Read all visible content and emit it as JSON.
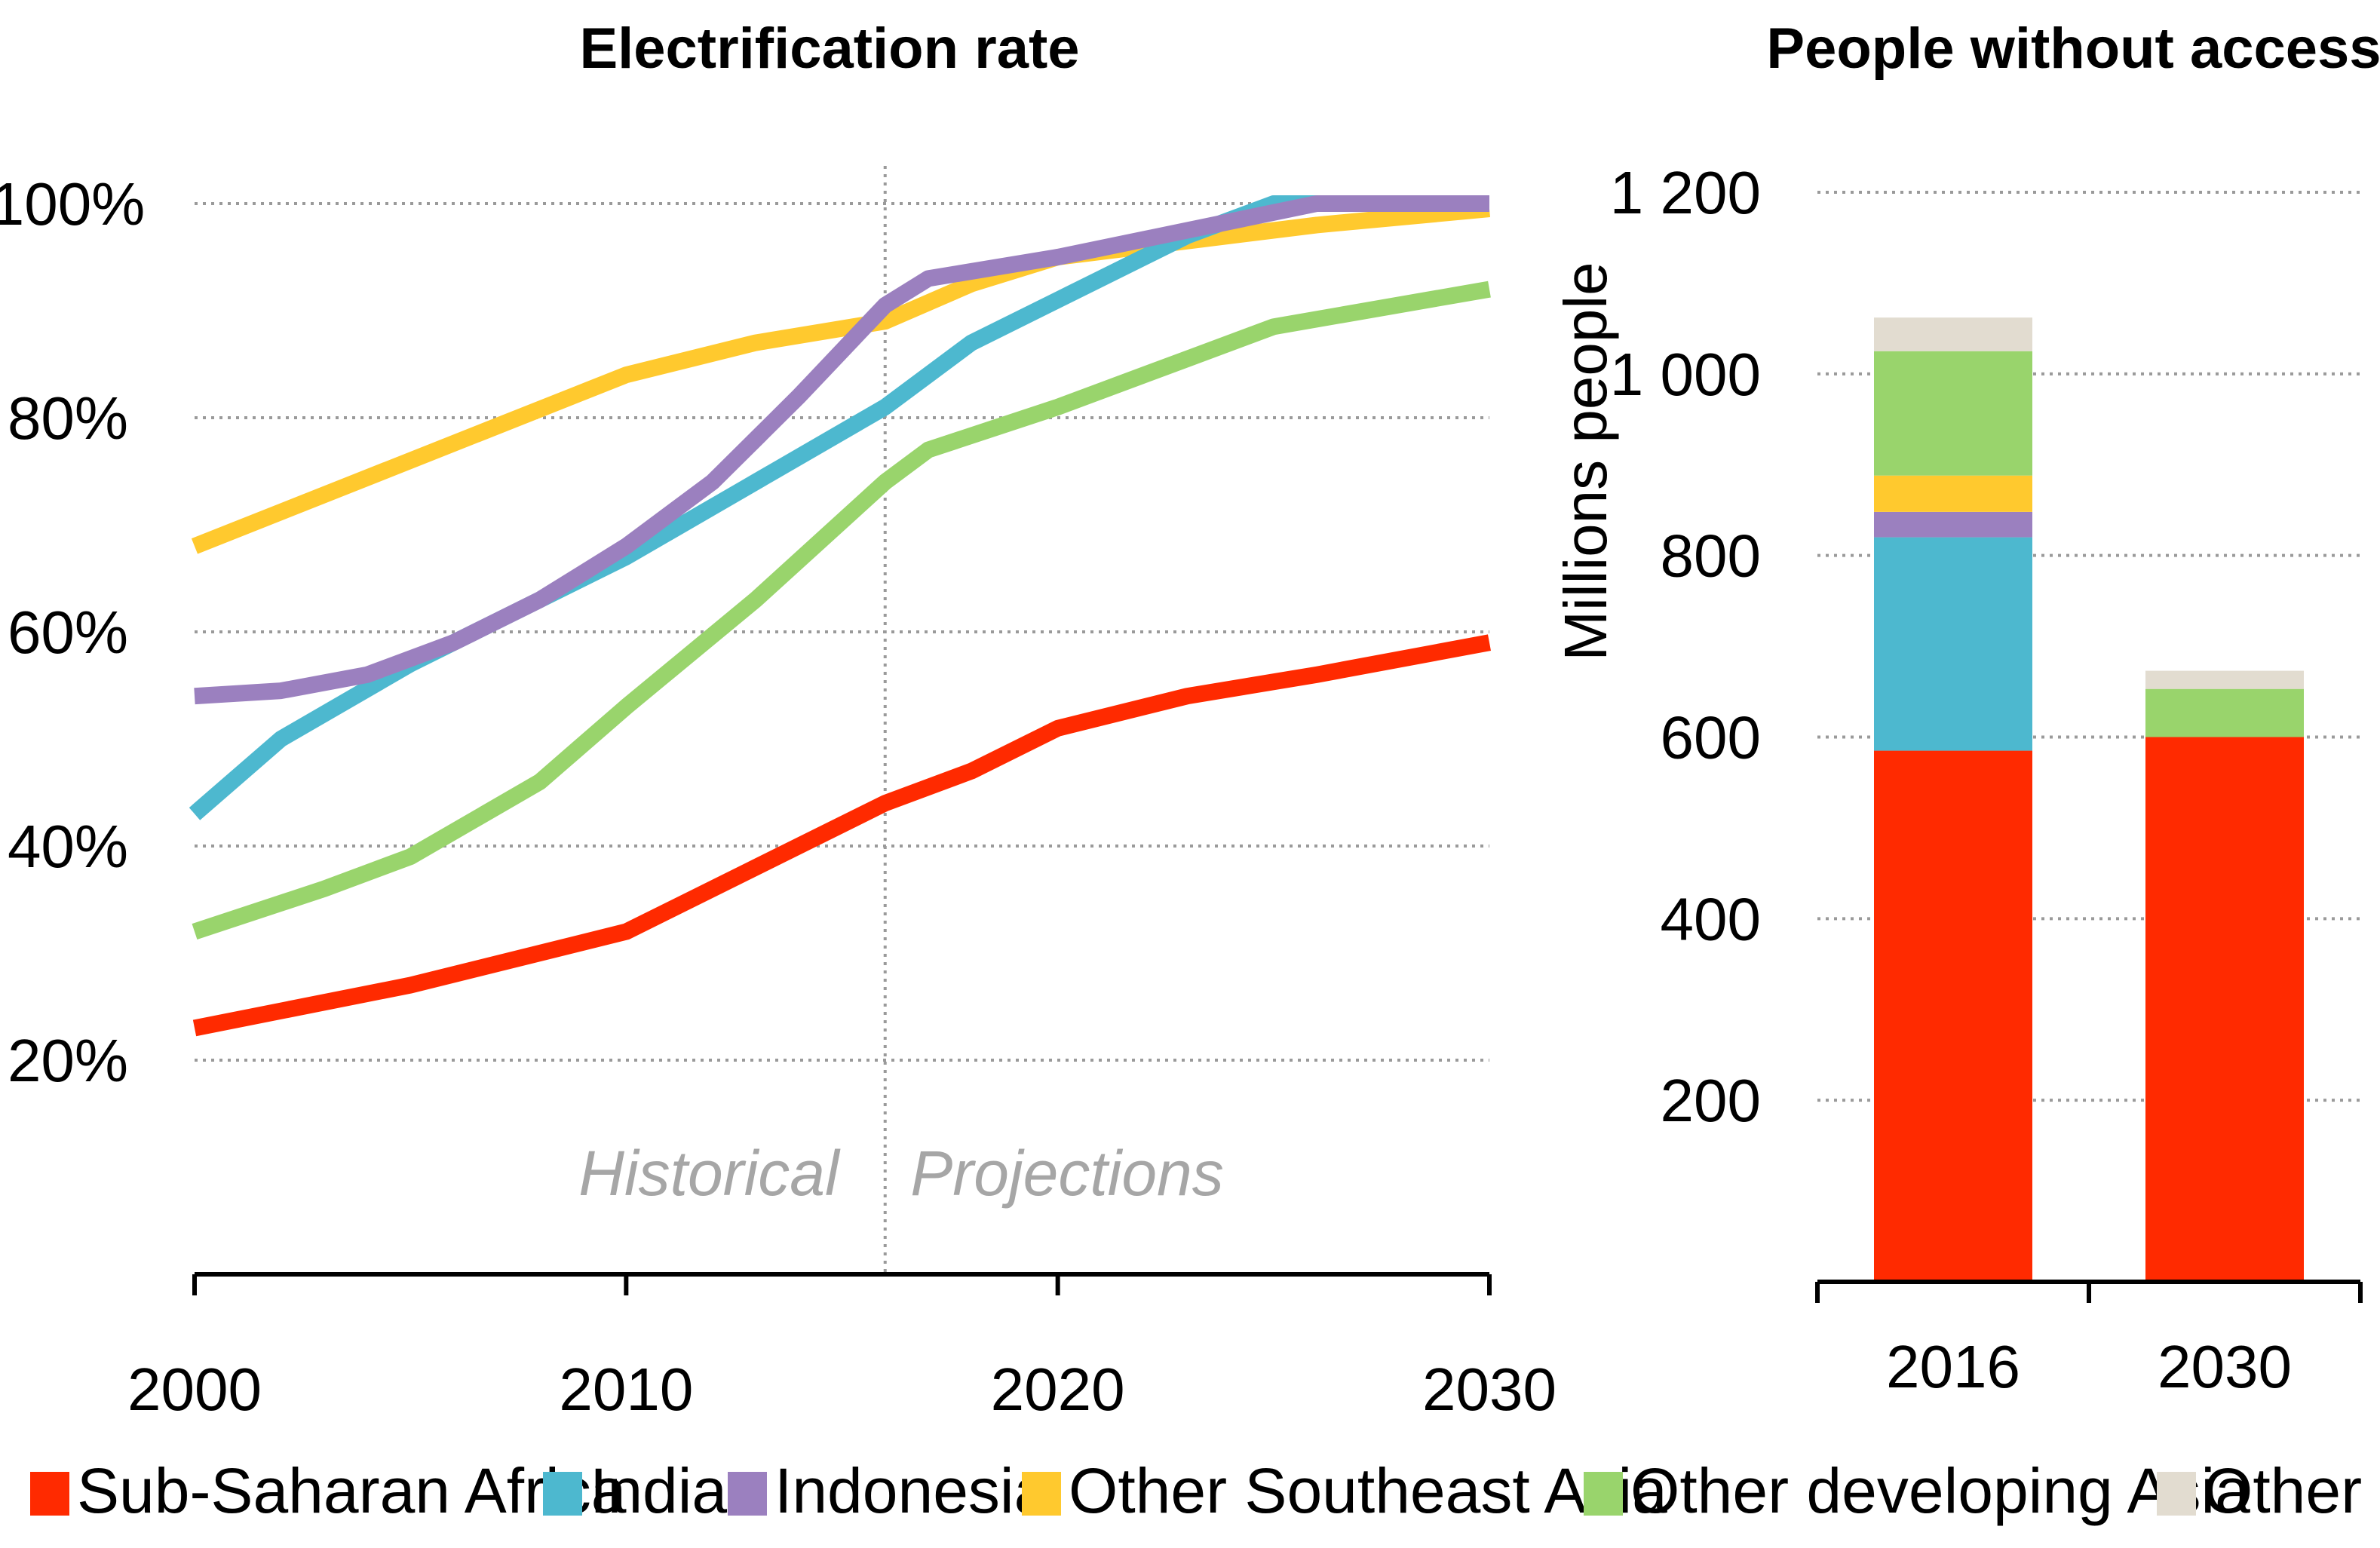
{
  "chart_data": [
    {
      "type": "line",
      "title": "Electrification rate",
      "xlabel": "",
      "ylabel": "",
      "xlim": [
        2000,
        2030
      ],
      "ylim": [
        0,
        100
      ],
      "y_unit": "%",
      "x_ticks": [
        "2000",
        "2010",
        "2020",
        "2030"
      ],
      "y_ticks": [
        "20%",
        "40%",
        "60%",
        "80%",
        "100%"
      ],
      "y_tick_values": [
        20,
        40,
        60,
        80,
        100
      ],
      "x_tick_values": [
        2000,
        2010,
        2020,
        2030
      ],
      "grid": true,
      "divider_x": 2016,
      "annotations": {
        "historical": "Historical",
        "projections": "Projections"
      },
      "series": [
        {
          "name": "Sub-Saharan Africa",
          "color": "#ff2a00",
          "x": [
            2000,
            2005,
            2010,
            2013,
            2016,
            2018,
            2020,
            2023,
            2026,
            2030
          ],
          "values": [
            23,
            27,
            32,
            38,
            44,
            47,
            51,
            54,
            56,
            59
          ]
        },
        {
          "name": "India",
          "color": "#4db8cf",
          "x": [
            2000,
            2002,
            2005,
            2007,
            2010,
            2013,
            2016,
            2018,
            2020,
            2023,
            2025,
            2030
          ],
          "values": [
            43,
            50,
            57,
            61,
            67,
            74,
            81,
            87,
            91,
            97,
            100,
            100
          ]
        },
        {
          "name": "Indonesia",
          "color": "#9b80bf",
          "x": [
            2000,
            2002,
            2004,
            2006,
            2008,
            2010,
            2012,
            2014,
            2016,
            2017,
            2020,
            2023,
            2026,
            2030
          ],
          "values": [
            54,
            54.5,
            56,
            59,
            63,
            68,
            74,
            82,
            90.5,
            93,
            95,
            97.5,
            100,
            100
          ]
        },
        {
          "name": "Other Southeast Asia",
          "color": "#ffc92e",
          "x": [
            2000,
            2005,
            2010,
            2013,
            2016,
            2018,
            2020,
            2023,
            2026,
            2030
          ],
          "values": [
            68,
            76,
            84,
            87,
            89,
            92.5,
            95,
            96.5,
            98,
            99.5
          ]
        },
        {
          "name": "Other developing Asia",
          "color": "#99d46c",
          "x": [
            2000,
            2003,
            2005,
            2008,
            2010,
            2013,
            2016,
            2017,
            2020,
            2023,
            2025,
            2030
          ],
          "values": [
            32,
            36,
            39,
            46,
            53,
            63,
            74,
            77,
            81,
            85.5,
            88.5,
            92
          ]
        }
      ]
    },
    {
      "type": "bar",
      "stacked": true,
      "title": "People without access",
      "xlabel": "",
      "ylabel": "Millions  people",
      "ylim": [
        0,
        1200
      ],
      "y_ticks": [
        "200",
        "400",
        "600",
        "800",
        "1 000",
        "1 200"
      ],
      "y_tick_values": [
        200,
        400,
        600,
        800,
        1000,
        1200
      ],
      "grid": true,
      "categories": [
        "2016",
        "2030"
      ],
      "series": [
        {
          "name": "Sub-Saharan Africa",
          "color": "#ff2a00",
          "values": [
            585,
            600
          ]
        },
        {
          "name": "India",
          "color": "#4db8cf",
          "values": [
            235,
            0
          ]
        },
        {
          "name": "Indonesia",
          "color": "#9b80bf",
          "values": [
            28,
            0
          ]
        },
        {
          "name": "Other Southeast Asia",
          "color": "#ffc92e",
          "values": [
            40,
            0
          ]
        },
        {
          "name": "Other developing Asia",
          "color": "#99d46c",
          "values": [
            137,
            53
          ]
        },
        {
          "name": "Other",
          "color": "#e2dcd0",
          "values": [
            37,
            20
          ]
        }
      ]
    }
  ],
  "legend": {
    "position": "bottom",
    "items": [
      {
        "label": "Sub-Saharan Africa",
        "color": "#ff2a00"
      },
      {
        "label": "India",
        "color": "#4db8cf"
      },
      {
        "label": "Indonesia",
        "color": "#9b80bf"
      },
      {
        "label": "Other Southeast Asia",
        "color": "#ffc92e"
      },
      {
        "label": "Other developing  Asia",
        "color": "#99d46c"
      },
      {
        "label": "Other",
        "color": "#e2dcd0"
      }
    ]
  }
}
